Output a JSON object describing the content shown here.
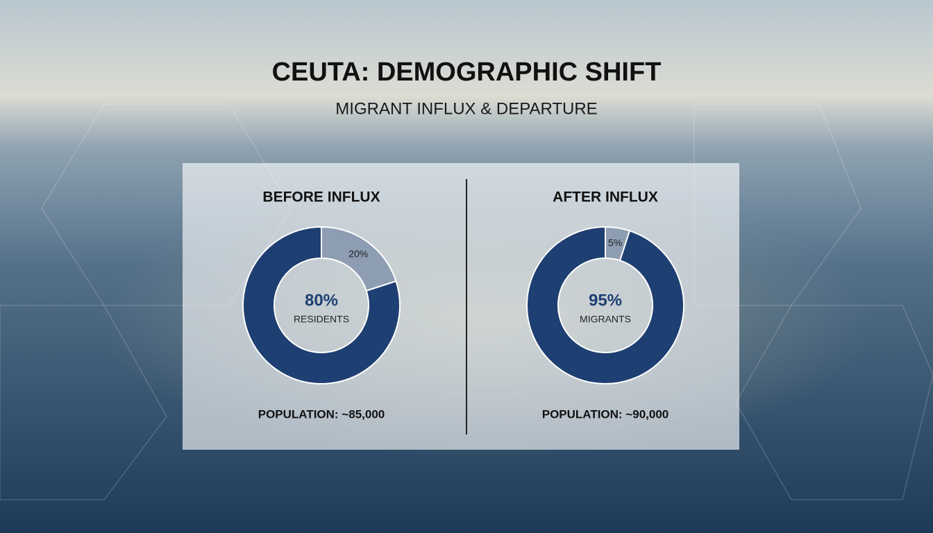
{
  "header": {
    "title": "CEUTA: DEMOGRAPHIC SHIFT",
    "subtitle": "MIGRANT INFLUX & DEPARTURE"
  },
  "chart_data": [
    {
      "type": "donut",
      "title": "BEFORE INFLUX",
      "categories": [
        "RESIDENTS",
        null
      ],
      "values": [
        80,
        20
      ],
      "value_labels": [
        "80%",
        "20%"
      ],
      "colors": [
        "#1e3f72",
        "#8d9db2"
      ],
      "annotation": "POPULATION: ~85,000"
    },
    {
      "type": "donut",
      "title": "AFTER INFLUX",
      "categories": [
        "MIGRANTS",
        null
      ],
      "values": [
        95,
        5
      ],
      "value_labels": [
        "95%",
        "5%"
      ],
      "colors": [
        "#1e3f72",
        "#8d9db2"
      ],
      "annotation": "POPULATION: ~90,000"
    }
  ]
}
